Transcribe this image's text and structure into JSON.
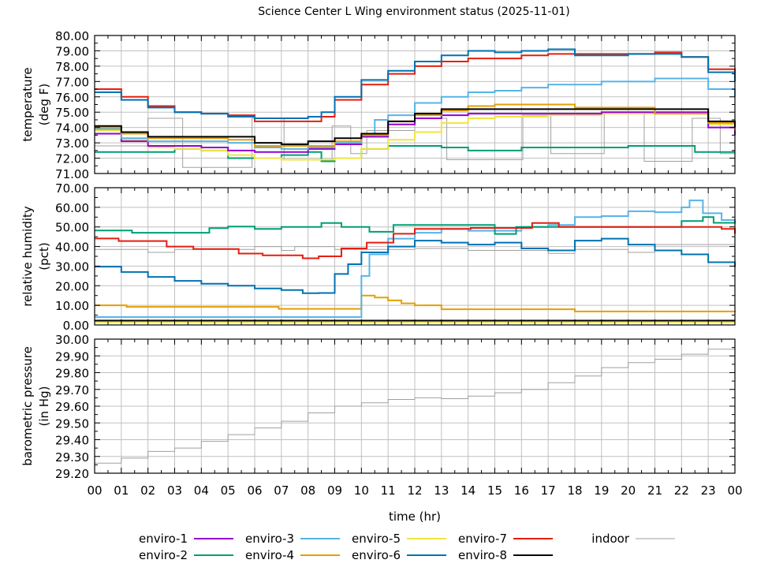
{
  "chart_data": {
    "type": "line",
    "title": "Science Center L Wing environment status (2025-11-01)",
    "xlabel": "time (hr)",
    "xlim": [
      0,
      24
    ],
    "x_tick_labels": [
      "00",
      "01",
      "02",
      "03",
      "04",
      "05",
      "06",
      "07",
      "08",
      "09",
      "10",
      "11",
      "12",
      "13",
      "14",
      "15",
      "16",
      "17",
      "18",
      "19",
      "20",
      "21",
      "22",
      "23",
      "00"
    ],
    "grid": true,
    "legend_placement": "bottom",
    "legend": [
      {
        "name": "enviro-1",
        "color": "#9400d3"
      },
      {
        "name": "enviro-2",
        "color": "#009e73"
      },
      {
        "name": "enviro-3",
        "color": "#56b4e9"
      },
      {
        "name": "enviro-4",
        "color": "#e69f00"
      },
      {
        "name": "enviro-5",
        "color": "#f0e442"
      },
      {
        "name": "enviro-6",
        "color": "#0072b2"
      },
      {
        "name": "enviro-7",
        "color": "#e51e10"
      },
      {
        "name": "enviro-8",
        "color": "#000000"
      },
      {
        "name": "indoor",
        "color": "#a0a0a0"
      }
    ],
    "panels": [
      {
        "ylabel": [
          "temperature",
          "(deg F)"
        ],
        "ylim": [
          71,
          80
        ],
        "y_ticks": [
          71,
          72,
          73,
          74,
          75,
          76,
          77,
          78,
          79,
          80
        ],
        "series": [
          {
            "name": "indoor",
            "x": [
              0,
              2,
              3.3,
              5.9,
              7.1,
              8.9,
              9.6,
              10.2,
              12,
              13.2,
              16.05,
              17.1,
              19.1,
              19.6,
              20.6,
              22.4,
              23.45,
              24
            ],
            "y": [
              72.8,
              74.6,
              71.4,
              74.6,
              71.9,
              74.1,
              72.3,
              73.8,
              74.6,
              71.9,
              74.8,
              72.3,
              75.0,
              75.0,
              71.8,
              74.6,
              72.3,
              73.3
            ]
          },
          {
            "name": "enviro-2",
            "x": [
              0,
              1,
              2,
              3,
              4,
              5,
              6,
              7,
              8,
              8.5,
              9,
              10,
              11,
              12,
              13,
              14,
              15,
              16,
              17,
              18,
              19,
              20,
              21,
              22,
              22.5,
              24
            ],
            "y": [
              72.4,
              72.4,
              72.4,
              72.6,
              72.5,
              72.0,
              72.0,
              72.2,
              72.4,
              71.8,
              72.0,
              72.6,
              72.8,
              72.8,
              72.7,
              72.5,
              72.5,
              72.7,
              72.7,
              72.7,
              72.7,
              72.8,
              72.8,
              72.8,
              72.4,
              72.4
            ]
          },
          {
            "name": "enviro-5",
            "x": [
              0,
              1,
              2,
              3,
              4,
              5,
              6,
              7,
              8,
              9,
              10,
              11,
              12,
              13,
              14,
              15,
              16,
              17,
              18,
              19,
              20,
              21,
              22,
              23,
              24
            ],
            "y": [
              73.8,
              73.2,
              72.7,
              72.6,
              72.5,
              72.2,
              72.0,
              71.9,
              71.9,
              72.0,
              72.6,
              73.2,
              73.7,
              74.3,
              74.6,
              74.7,
              74.7,
              74.8,
              74.8,
              74.9,
              74.9,
              74.9,
              74.9,
              74.2,
              73.8
            ]
          },
          {
            "name": "enviro-1",
            "x": [
              0,
              1,
              2,
              3,
              4,
              5,
              6,
              7,
              8,
              9,
              10,
              11,
              12,
              13,
              14,
              15,
              16,
              17,
              18,
              19,
              20,
              21,
              22,
              23,
              24
            ],
            "y": [
              73.6,
              73.1,
              72.8,
              72.8,
              72.7,
              72.5,
              72.4,
              72.4,
              72.6,
              72.9,
              73.4,
              74.2,
              74.6,
              74.8,
              74.9,
              74.9,
              74.9,
              74.9,
              74.9,
              75.0,
              75.0,
              75.0,
              75.0,
              74.0,
              73.5
            ]
          },
          {
            "name": "enviro-3",
            "x": [
              0,
              1,
              2,
              3,
              4,
              5,
              6,
              7,
              8,
              9,
              10,
              10.5,
              11,
              12,
              13,
              14,
              15,
              16,
              17,
              18,
              19,
              20,
              21,
              22,
              23,
              24
            ],
            "y": [
              73.9,
              73.3,
              73.1,
              73.1,
              73.1,
              73.0,
              72.7,
              72.6,
              72.7,
              73.0,
              73.5,
              74.5,
              74.8,
              75.6,
              76.0,
              76.3,
              76.4,
              76.6,
              76.8,
              76.8,
              77.0,
              77.0,
              77.2,
              77.2,
              76.5,
              76.0
            ]
          },
          {
            "name": "enviro-4",
            "x": [
              0,
              1,
              2,
              3,
              4,
              5,
              6,
              7,
              8,
              9,
              10,
              11,
              12,
              13,
              14,
              15,
              16,
              17,
              18,
              19,
              20,
              20.5,
              21,
              22,
              23,
              24
            ],
            "y": [
              74.0,
              73.6,
              73.3,
              73.3,
              73.3,
              73.2,
              72.8,
              72.8,
              72.8,
              73.1,
              73.5,
              74.4,
              74.8,
              75.1,
              75.4,
              75.5,
              75.5,
              75.5,
              75.3,
              75.3,
              75.3,
              75.3,
              74.9,
              74.9,
              74.3,
              73.8
            ]
          },
          {
            "name": "enviro-8",
            "x": [
              0,
              1,
              2,
              3,
              4,
              5,
              6,
              7,
              8,
              9,
              10,
              11,
              12,
              13,
              14,
              22.4,
              23,
              24
            ],
            "y": [
              74.1,
              73.7,
              73.4,
              73.4,
              73.4,
              73.4,
              73.0,
              72.9,
              73.1,
              73.3,
              73.6,
              74.4,
              74.9,
              75.2,
              75.2,
              75.2,
              74.4,
              74.0
            ]
          },
          {
            "name": "enviro-7",
            "x": [
              0,
              1,
              2,
              3,
              4,
              5,
              6,
              7,
              8,
              8.5,
              9,
              10,
              11,
              12,
              13,
              14,
              15,
              16,
              17,
              18,
              19,
              20,
              21,
              22,
              23,
              24
            ],
            "y": [
              76.5,
              76.0,
              75.4,
              75.0,
              74.9,
              74.8,
              74.4,
              74.4,
              74.4,
              74.7,
              75.8,
              76.8,
              77.5,
              78.0,
              78.3,
              78.5,
              78.5,
              78.7,
              78.8,
              78.8,
              78.8,
              78.8,
              78.9,
              78.6,
              77.8,
              77.0
            ]
          },
          {
            "name": "enviro-6",
            "x": [
              0,
              1,
              2,
              3,
              4,
              5,
              6,
              7,
              8,
              8.5,
              9,
              10,
              11,
              12,
              13,
              14,
              15,
              16,
              17,
              18,
              19,
              20,
              21,
              22,
              23,
              24
            ],
            "y": [
              76.3,
              75.8,
              75.3,
              75.0,
              74.9,
              74.7,
              74.6,
              74.6,
              74.7,
              75.0,
              76.0,
              77.1,
              77.7,
              78.3,
              78.7,
              79.0,
              78.9,
              79.0,
              79.1,
              78.7,
              78.7,
              78.8,
              78.8,
              78.6,
              77.6,
              77.0
            ]
          }
        ]
      },
      {
        "ylabel": [
          "relative humidity",
          "(pct)"
        ],
        "ylim": [
          0,
          70
        ],
        "y_ticks": [
          0,
          10,
          20,
          30,
          40,
          50,
          60,
          70
        ],
        "series": [
          {
            "name": "indoor",
            "x": [
              0,
              2,
              3,
              6,
              7,
              7.5,
              9,
              10,
              12,
              14,
              16,
              17,
              18,
              20,
              21,
              22,
              24
            ],
            "y": [
              38.5,
              37,
              38.5,
              40,
              38,
              40,
              38.5,
              38.5,
              39,
              38,
              38,
              36.5,
              38.5,
              37,
              41,
              41,
              41
            ]
          },
          {
            "name": "enviro-5",
            "x": [
              0,
              24
            ],
            "y": [
              1.4,
              1.4
            ]
          },
          {
            "name": "enviro-8",
            "x": [
              0,
              24
            ],
            "y": [
              2.2,
              2.2
            ]
          },
          {
            "name": "enviro-4",
            "x": [
              0,
              1.1,
              1.2,
              6.8,
              6.9,
              9.8,
              10,
              10.5,
              11,
              11.5,
              12,
              13,
              17,
              18,
              23.9,
              24
            ],
            "y": [
              10,
              10,
              9.2,
              9.2,
              8.2,
              8.2,
              15,
              14,
              12.5,
              11,
              10,
              8,
              8,
              6.9,
              6.9,
              6.5
            ]
          },
          {
            "name": "enviro-3",
            "x": [
              0,
              9.7,
              10,
              10.3,
              11,
              12,
              13,
              14,
              15,
              16,
              17,
              18,
              19,
              20,
              21,
              22,
              22.3,
              22.8,
              23.5,
              24
            ],
            "y": [
              4,
              4,
              25,
              36,
              44,
              47,
              49,
              48,
              48,
              50,
              51,
              55,
              55.5,
              58,
              57.5,
              60,
              63.5,
              57,
              53.5,
              53
            ]
          },
          {
            "name": "enviro-6",
            "x": [
              0,
              1,
              2,
              3,
              4,
              5,
              6,
              7,
              7.8,
              8.4,
              9,
              9.5,
              10,
              11,
              12,
              13,
              14,
              15,
              16,
              17,
              18,
              19,
              20,
              21,
              22,
              23,
              24
            ],
            "y": [
              29.7,
              27,
              24.5,
              22.5,
              21,
              20,
              18.6,
              17.8,
              16.2,
              16.3,
              26,
              31,
              37,
              40,
              43,
              42,
              41,
              42,
              39,
              38,
              43,
              44,
              41,
              38,
              36,
              32,
              29.5
            ]
          },
          {
            "name": "enviro-2",
            "x": [
              0,
              1.4,
              4,
              4.3,
              5,
              6,
              7,
              8.5,
              9.25,
              10.3,
              11.2,
              12.5,
              15,
              15.8,
              21.1,
              22,
              22.8,
              23.2,
              24
            ],
            "y": [
              48.2,
              47,
              47,
              49.4,
              50.2,
              49,
              50,
              52,
              50,
              47.5,
              51,
              51,
              46.4,
              50,
              50,
              53,
              55,
              52.1,
              53
            ]
          },
          {
            "name": "enviro-7",
            "x": [
              0,
              0.9,
              2.7,
              3.7,
              5.4,
              6.3,
              7.8,
              8.4,
              9.25,
              10.2,
              11.2,
              12,
              14.1,
              16.4,
              17.4,
              23.5,
              24
            ],
            "y": [
              44.1,
              42.8,
              40,
              38.7,
              36.4,
              35.5,
              34,
              35,
              39,
              42,
              46.5,
              49,
              49.5,
              52,
              50,
              49,
              46.5
            ]
          }
        ]
      },
      {
        "ylabel": [
          "barometric pressure",
          "(in Hg)"
        ],
        "ylim": [
          29.2,
          30.0
        ],
        "y_ticks": [
          29.2,
          29.3,
          29.4,
          29.5,
          29.6,
          29.7,
          29.8,
          29.9,
          30.0
        ],
        "series": [
          {
            "name": "indoor",
            "x": [
              0,
              1,
              2,
              3,
              4,
              5,
              6,
              7,
              8,
              9,
              10,
              11,
              12,
              13,
              14,
              15,
              16,
              17,
              18,
              19,
              20,
              21,
              22,
              23,
              24
            ],
            "y": [
              29.26,
              29.29,
              29.33,
              29.35,
              29.39,
              29.43,
              29.47,
              29.51,
              29.56,
              29.6,
              29.62,
              29.64,
              29.65,
              29.645,
              29.66,
              29.68,
              29.7,
              29.74,
              29.78,
              29.83,
              29.86,
              29.88,
              29.91,
              29.94,
              29.95
            ]
          }
        ]
      }
    ]
  }
}
